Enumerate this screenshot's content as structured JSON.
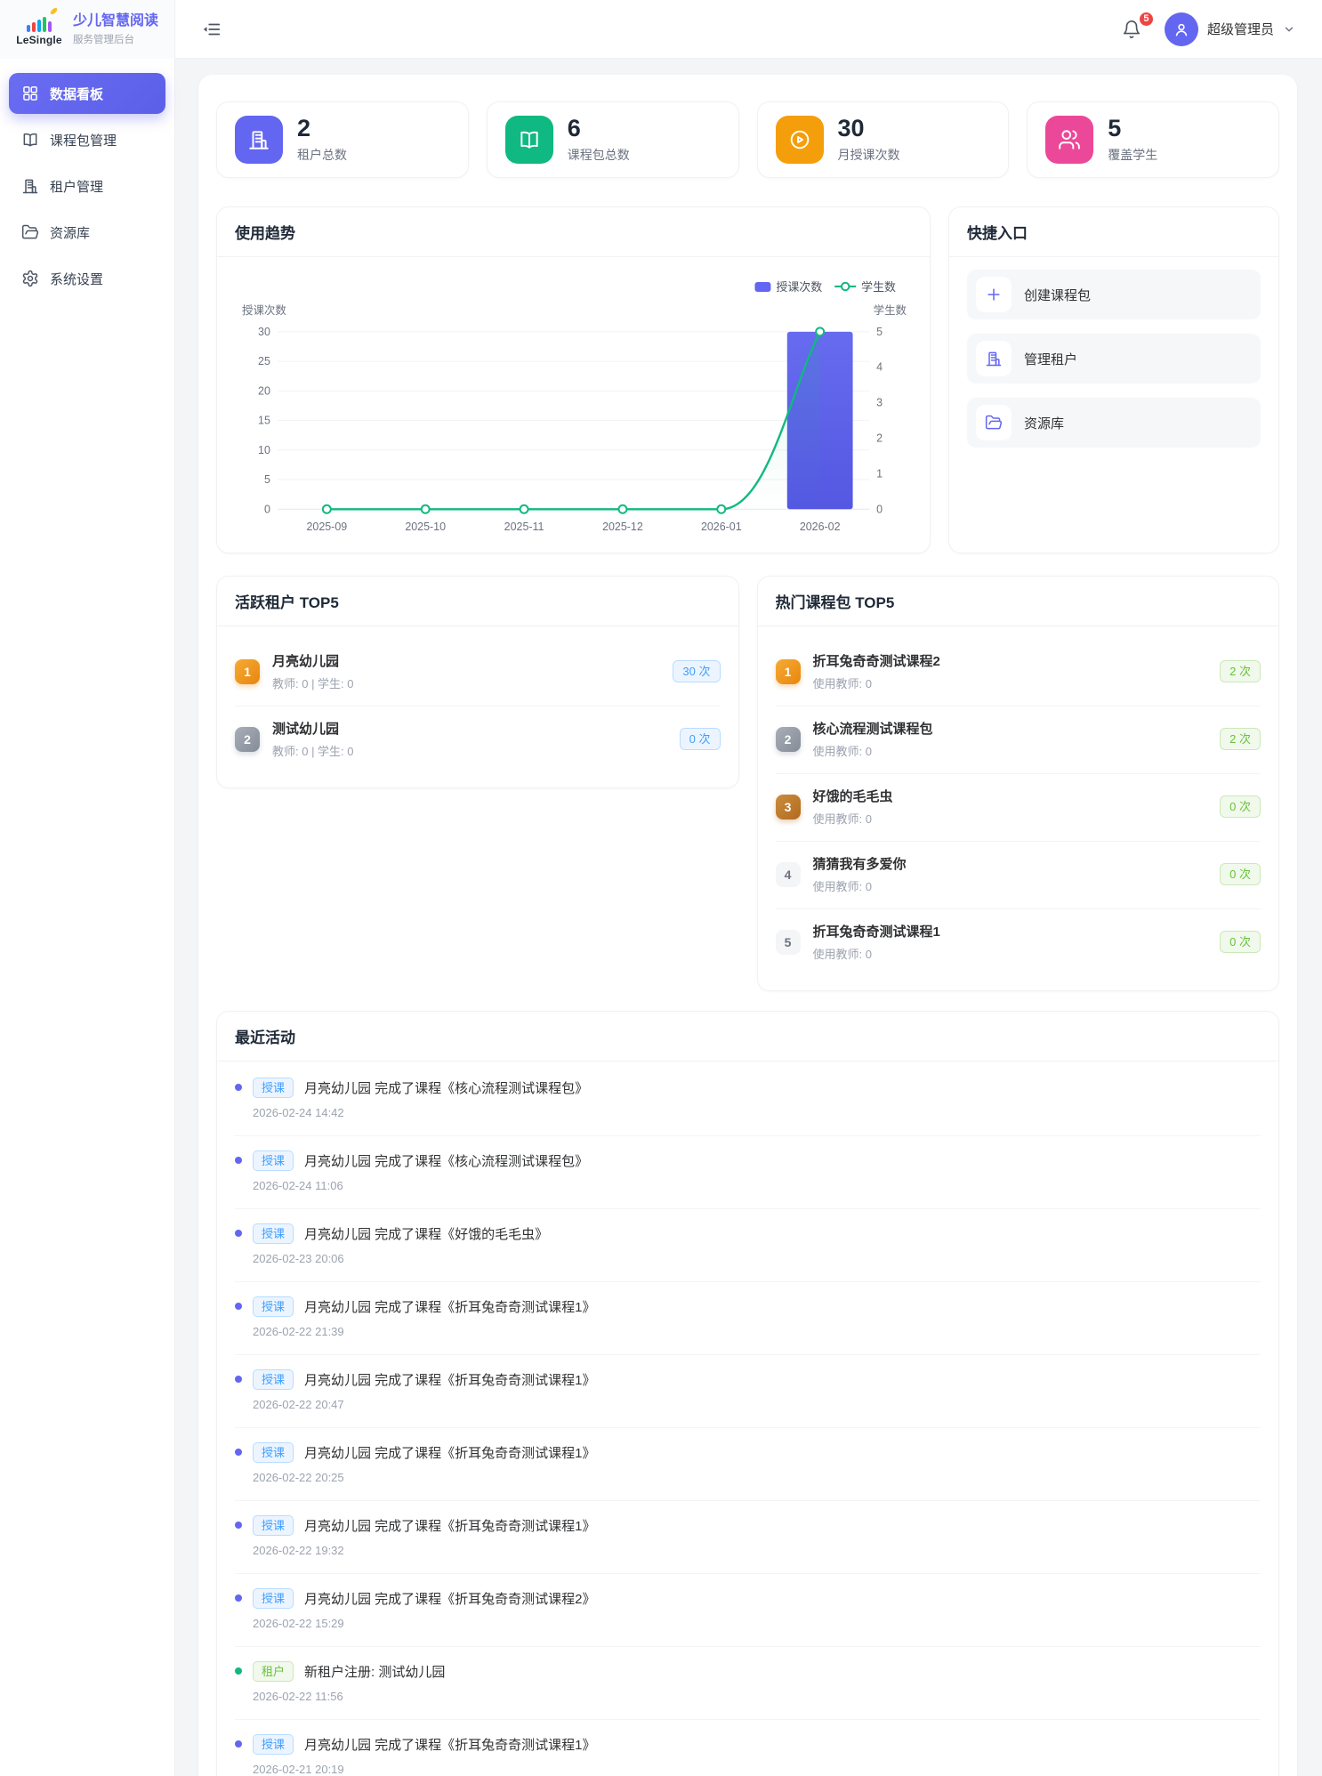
{
  "header": {
    "logo": {
      "brand": "LeSingle",
      "title": "少儿智慧阅读",
      "subtitle": "服务管理后台"
    },
    "notification_count": "5",
    "user_name": "超级管理员"
  },
  "sidebar": {
    "items": [
      {
        "label": "数据看板",
        "icon": "dashboard-icon",
        "active": true
      },
      {
        "label": "课程包管理",
        "icon": "book-icon",
        "active": false
      },
      {
        "label": "租户管理",
        "icon": "building-icon",
        "active": false
      },
      {
        "label": "资源库",
        "icon": "folder-icon",
        "active": false
      },
      {
        "label": "系统设置",
        "icon": "gear-icon",
        "active": false
      }
    ]
  },
  "stats": [
    {
      "value": "2",
      "label": "租户总数",
      "icon": "building-icon",
      "color": "#6366f1"
    },
    {
      "value": "6",
      "label": "课程包总数",
      "icon": "book-icon",
      "color": "#10b981"
    },
    {
      "value": "30",
      "label": "月授课次数",
      "icon": "play-icon",
      "color": "#f59e0b"
    },
    {
      "value": "5",
      "label": "覆盖学生",
      "icon": "users-icon",
      "color": "#ec4899"
    }
  ],
  "chart_data": {
    "type": "bar+line",
    "title": "使用趋势",
    "categories": [
      "2025-09",
      "2025-10",
      "2025-11",
      "2025-12",
      "2026-01",
      "2026-02"
    ],
    "series": [
      {
        "name": "授课次数",
        "type": "bar",
        "axis": "left",
        "color": "#5b5fe8",
        "values": [
          0,
          0,
          0,
          0,
          0,
          30
        ]
      },
      {
        "name": "学生数",
        "type": "line",
        "axis": "right",
        "color": "#10b981",
        "values": [
          0,
          0,
          0,
          0,
          0,
          5
        ]
      }
    ],
    "left_axis": {
      "label": "授课次数",
      "min": 0,
      "max": 30,
      "ticks": [
        0,
        5,
        10,
        15,
        20,
        25,
        30
      ]
    },
    "right_axis": {
      "label": "学生数",
      "min": 0,
      "max": 5,
      "ticks": [
        0,
        1,
        2,
        3,
        4,
        5
      ]
    },
    "legend": {
      "position": "top-right",
      "entries": [
        "授课次数",
        "学生数"
      ]
    },
    "grid": true
  },
  "quick_entry": {
    "title": "快捷入口",
    "items": [
      {
        "label": "创建课程包",
        "icon": "plus-icon"
      },
      {
        "label": "管理租户",
        "icon": "building-icon"
      },
      {
        "label": "资源库",
        "icon": "folder-icon"
      }
    ]
  },
  "active_tenants": {
    "title": "活跃租户 TOP5",
    "items": [
      {
        "rank": "1",
        "name": "月亮幼儿园",
        "meta": "教师: 0 | 学生: 0",
        "count": "30 次"
      },
      {
        "rank": "2",
        "name": "测试幼儿园",
        "meta": "教师: 0 | 学生: 0",
        "count": "0 次"
      }
    ]
  },
  "hot_courses": {
    "title": "热门课程包 TOP5",
    "items": [
      {
        "rank": "1",
        "name": "折耳兔奇奇测试课程2",
        "meta": "使用教师: 0",
        "count": "2 次"
      },
      {
        "rank": "2",
        "name": "核心流程测试课程包",
        "meta": "使用教师: 0",
        "count": "2 次"
      },
      {
        "rank": "3",
        "name": "好饿的毛毛虫",
        "meta": "使用教师: 0",
        "count": "0 次"
      },
      {
        "rank": "4",
        "name": "猜猜我有多爱你",
        "meta": "使用教师: 0",
        "count": "0 次"
      },
      {
        "rank": "5",
        "name": "折耳兔奇奇测试课程1",
        "meta": "使用教师: 0",
        "count": "0 次"
      }
    ]
  },
  "recent_activity": {
    "title": "最近活动",
    "items": [
      {
        "kind": "teach",
        "badge": "授课",
        "text": "月亮幼儿园 完成了课程《核心流程测试课程包》",
        "time": "2026-02-24 14:42"
      },
      {
        "kind": "teach",
        "badge": "授课",
        "text": "月亮幼儿园 完成了课程《核心流程测试课程包》",
        "time": "2026-02-24 11:06"
      },
      {
        "kind": "teach",
        "badge": "授课",
        "text": "月亮幼儿园 完成了课程《好饿的毛毛虫》",
        "time": "2026-02-23 20:06"
      },
      {
        "kind": "teach",
        "badge": "授课",
        "text": "月亮幼儿园 完成了课程《折耳兔奇奇测试课程1》",
        "time": "2026-02-22 21:39"
      },
      {
        "kind": "teach",
        "badge": "授课",
        "text": "月亮幼儿园 完成了课程《折耳兔奇奇测试课程1》",
        "time": "2026-02-22 20:47"
      },
      {
        "kind": "teach",
        "badge": "授课",
        "text": "月亮幼儿园 完成了课程《折耳兔奇奇测试课程1》",
        "time": "2026-02-22 20:25"
      },
      {
        "kind": "teach",
        "badge": "授课",
        "text": "月亮幼儿园 完成了课程《折耳兔奇奇测试课程1》",
        "time": "2026-02-22 19:32"
      },
      {
        "kind": "teach",
        "badge": "授课",
        "text": "月亮幼儿园 完成了课程《折耳兔奇奇测试课程2》",
        "time": "2026-02-22 15:29"
      },
      {
        "kind": "tenant",
        "badge": "租户",
        "text": "新租户注册: 测试幼儿园",
        "time": "2026-02-22 11:56"
      },
      {
        "kind": "teach",
        "badge": "授课",
        "text": "月亮幼儿园 完成了课程《折耳兔奇奇测试课程1》",
        "time": "2026-02-21 20:19"
      }
    ]
  },
  "colors": {
    "primary": "#6366f1",
    "success": "#10b981",
    "warning": "#f59e0b",
    "pink": "#ec4899",
    "tag_blue": "#409eff",
    "tag_green": "#67c23a",
    "badge_red": "#ef4444",
    "teach_dot": "#6366f1",
    "tenant_dot": "#10b981"
  }
}
